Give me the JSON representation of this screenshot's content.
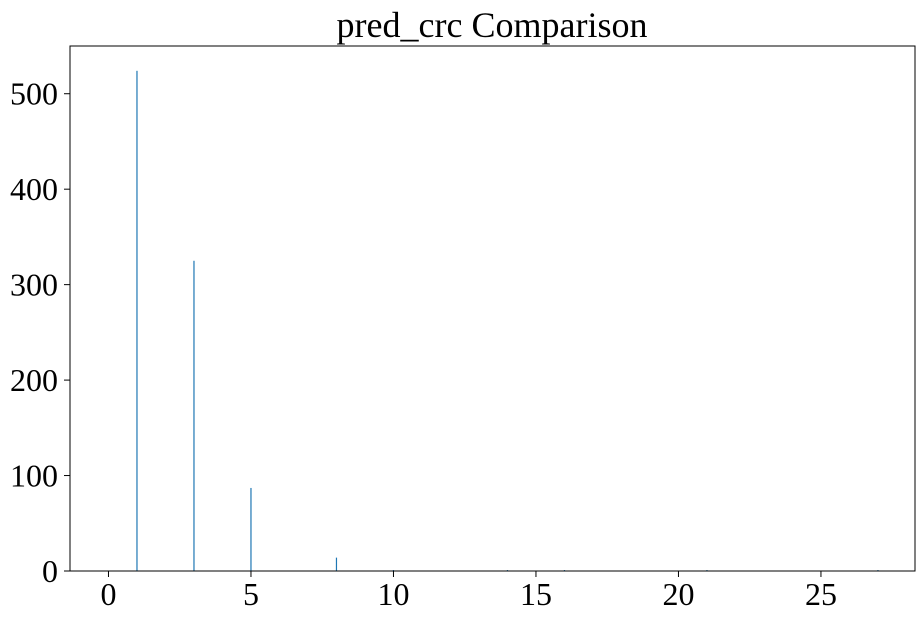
{
  "chart_data": {
    "type": "bar",
    "title": "pred_crc Comparison",
    "xlabel": "",
    "ylabel": "",
    "xlim": [
      -1.35,
      28.3
    ],
    "ylim": [
      0,
      550
    ],
    "xticks": [
      0,
      5,
      10,
      15,
      20,
      25
    ],
    "yticks": [
      0,
      100,
      200,
      300,
      400,
      500
    ],
    "grid": false,
    "legend": "none",
    "bar_color": "#1f77b4",
    "points": [
      {
        "x": 1,
        "y": 524
      },
      {
        "x": 3,
        "y": 325
      },
      {
        "x": 5,
        "y": 87
      },
      {
        "x": 8,
        "y": 14
      },
      {
        "x": 10,
        "y": 1
      },
      {
        "x": 14,
        "y": 1
      },
      {
        "x": 16,
        "y": 1
      },
      {
        "x": 21,
        "y": 1
      },
      {
        "x": 27,
        "y": 1
      }
    ]
  }
}
